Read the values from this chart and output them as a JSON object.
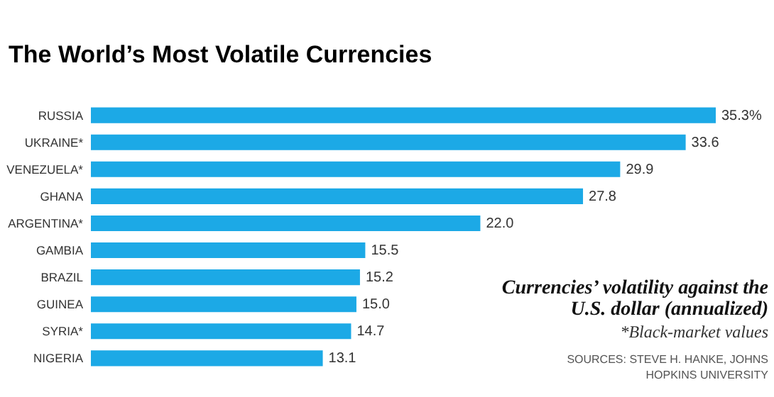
{
  "chart_data": {
    "type": "bar",
    "orientation": "horizontal",
    "title": "The World’s Most Volatile Currencies",
    "categories": [
      "RUSSIA",
      "UKRAINE*",
      "VENEZUELA*",
      "GHANA",
      "ARGENTINA*",
      "GAMBIA",
      "BRAZIL",
      "GUINEA",
      "SYRIA*",
      "NIGERIA"
    ],
    "values": [
      35.3,
      33.6,
      29.9,
      27.8,
      22.0,
      15.5,
      15.2,
      15.0,
      14.7,
      13.1
    ],
    "value_labels": [
      "35.3%",
      "33.6",
      "29.9",
      "27.8",
      "22.0",
      "15.5",
      "15.2",
      "15.0",
      "14.7",
      "13.1"
    ],
    "color": "#1ca9e6",
    "annotations": [
      "Currencies’ volatility against the U.S. dollar (annualized)",
      "*Black-market values",
      "SOURCES: STEVE H. HANKE, JOHNS HOPKINS UNIVERSITY"
    ]
  }
}
